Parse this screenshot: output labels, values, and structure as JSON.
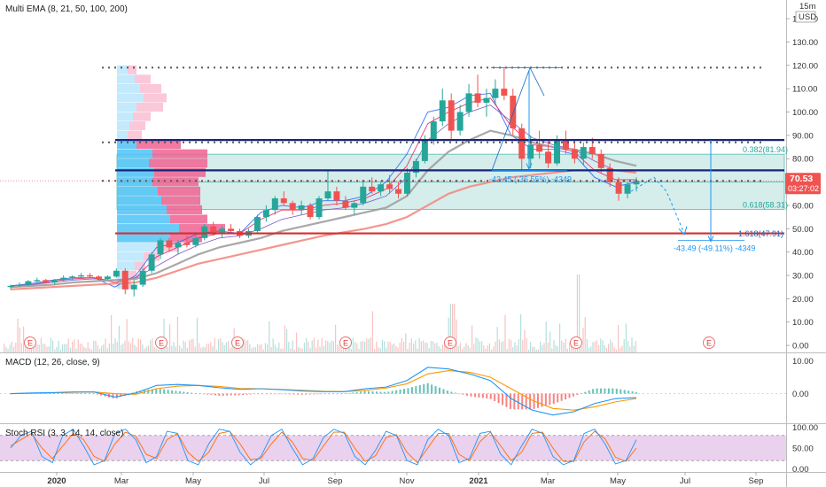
{
  "indicators": {
    "main": "Multi EMA (8, 21, 50, 100, 200)",
    "macd": "MACD (12, 26, close, 9)",
    "stoch": "Stoch RSI (3, 3, 14, 14, close)"
  },
  "header_right": {
    "interval": "15m",
    "currency": "USD"
  },
  "price_badge": {
    "price": "70.53",
    "countdown": "03:27:02"
  },
  "fib_levels": [
    {
      "label": "0.382(81.94)",
      "value": 81.94
    },
    {
      "label": "0.618(58.31)",
      "value": 58.31
    },
    {
      "label": "1.618(47.91)",
      "value": 47.91
    }
  ],
  "measure_labels": [
    {
      "text": "-43.45 (-36.55%) -4349",
      "x_date": "2021-03-25",
      "y_value": 70
    },
    {
      "text": "-43.49 (-49.11%) -4349",
      "x_date": "2021-08-01",
      "y_value": 40.5
    }
  ],
  "earnings_marker": "E",
  "colors": {
    "candle_up": "#26a69a",
    "candle_down": "#ef5350",
    "ema8": "#2962ff",
    "ema21": "#e91e63",
    "ema50": "#7e57c2",
    "ema100": "#9e9e9e",
    "ema200": "#f28b82",
    "macd_line": "#2196f3",
    "signal_line": "#ff9800",
    "stoch_k": "#2196f3",
    "stoch_d": "#ff6d00",
    "stoch_band": "#e1bee7",
    "fib_zone": "#b2dfdb",
    "support_red": "#d32f2f",
    "resistance_navy": "#1a237e"
  },
  "chart_data": [
    {
      "type": "candlestick",
      "x_axis": {
        "labels": [
          "2020",
          "Mar",
          "May",
          "Jul",
          "Sep",
          "Nov",
          "2021",
          "Mar",
          "May",
          "Jul",
          "Sep"
        ]
      },
      "y_axis": {
        "ticks": [
          0,
          10,
          20,
          30,
          40,
          50,
          60,
          70,
          80,
          90,
          100,
          110,
          120,
          130,
          140
        ],
        "format": "2dec",
        "range": [
          -3,
          148
        ]
      },
      "ohlc_weekly": [
        [
          25,
          26,
          24,
          25.5
        ],
        [
          25.5,
          27,
          25,
          26
        ],
        [
          26,
          28,
          25.5,
          27.5
        ],
        [
          27.5,
          29,
          27,
          28
        ],
        [
          28,
          28.5,
          26.5,
          27
        ],
        [
          27,
          28.5,
          26,
          28
        ],
        [
          28,
          30,
          27.5,
          29
        ],
        [
          29,
          30,
          28,
          29.5
        ],
        [
          29.5,
          31,
          29,
          30
        ],
        [
          30,
          31,
          29,
          29.5
        ],
        [
          29.5,
          30,
          28,
          28.5
        ],
        [
          28.5,
          30,
          28,
          29.5
        ],
        [
          29.5,
          33,
          29,
          32
        ],
        [
          32,
          33,
          22,
          24
        ],
        [
          24,
          28,
          21,
          26
        ],
        [
          26,
          33,
          25,
          32
        ],
        [
          32,
          40,
          31,
          39
        ],
        [
          39,
          46,
          37,
          45
        ],
        [
          45,
          46,
          40,
          42
        ],
        [
          42,
          45,
          39,
          44
        ],
        [
          44,
          47,
          42,
          43
        ],
        [
          43,
          47,
          42,
          46
        ],
        [
          46,
          52,
          45,
          51
        ],
        [
          51,
          53,
          47,
          48
        ],
        [
          48,
          51,
          46,
          50
        ],
        [
          50,
          52,
          48,
          49
        ],
        [
          49,
          50,
          46,
          47
        ],
        [
          47,
          50,
          46,
          49
        ],
        [
          49,
          56,
          48,
          55
        ],
        [
          55,
          60,
          53,
          58
        ],
        [
          58,
          64,
          56,
          63
        ],
        [
          63,
          66,
          60,
          61
        ],
        [
          61,
          62,
          56,
          58
        ],
        [
          58,
          62,
          56,
          60
        ],
        [
          60,
          61,
          54,
          55
        ],
        [
          55,
          64,
          54,
          63
        ],
        [
          63,
          75,
          62,
          66
        ],
        [
          66,
          68,
          60,
          62
        ],
        [
          62,
          64,
          58,
          59
        ],
        [
          59,
          62,
          56,
          61
        ],
        [
          61,
          70,
          60,
          68
        ],
        [
          68,
          72,
          65,
          66
        ],
        [
          66,
          70,
          64,
          69
        ],
        [
          69,
          73,
          65,
          67
        ],
        [
          67,
          70,
          63,
          65
        ],
        [
          65,
          76,
          64,
          74
        ],
        [
          74,
          80,
          72,
          79
        ],
        [
          79,
          90,
          78,
          88
        ],
        [
          88,
          98,
          86,
          96
        ],
        [
          96,
          110,
          94,
          105
        ],
        [
          105,
          108,
          88,
          92
        ],
        [
          92,
          103,
          90,
          100
        ],
        [
          100,
          112,
          98,
          108
        ],
        [
          108,
          116,
          102,
          104
        ],
        [
          104,
          110,
          98,
          106
        ],
        [
          106,
          114,
          103,
          110
        ],
        [
          110,
          119,
          105,
          107
        ],
        [
          107,
          110,
          90,
          93
        ],
        [
          93,
          95,
          75,
          80
        ],
        [
          80,
          90,
          76,
          86
        ],
        [
          86,
          92,
          80,
          83
        ],
        [
          83,
          88,
          76,
          78
        ],
        [
          78,
          90,
          77,
          88
        ],
        [
          88,
          92,
          82,
          84
        ],
        [
          84,
          88,
          78,
          80
        ],
        [
          80,
          87,
          77,
          85
        ],
        [
          85,
          89,
          80,
          82
        ],
        [
          82,
          84,
          74,
          76
        ],
        [
          76,
          78,
          68,
          70
        ],
        [
          70,
          72,
          62,
          65
        ],
        [
          65,
          70,
          63,
          69
        ],
        [
          69,
          72,
          66,
          70.53
        ]
      ],
      "ema_series": [
        {
          "name": "EMA 8",
          "values": [
            25.5,
            26.5,
            28,
            29,
            29,
            25,
            30,
            42,
            44,
            48,
            49,
            48,
            57,
            60,
            59,
            62,
            62,
            64,
            70,
            82,
            100,
            102,
            107,
            108,
            90,
            84,
            84,
            82,
            72,
            68,
            70
          ]
        },
        {
          "name": "EMA 21",
          "values": [
            25.5,
            26,
            27.5,
            28.5,
            29,
            27,
            29,
            38,
            42,
            46,
            48,
            48,
            54,
            58,
            58,
            60,
            61,
            63,
            67,
            77,
            95,
            100,
            104,
            106,
            94,
            86,
            85,
            83,
            75,
            71,
            71
          ]
        },
        {
          "name": "EMA 50",
          "values": [
            25.5,
            26,
            27,
            28,
            28.5,
            28,
            29,
            34,
            39,
            43,
            46,
            47,
            50,
            54,
            56,
            58,
            59,
            61,
            64,
            72,
            88,
            95,
            100,
            103,
            96,
            89,
            86,
            84,
            79,
            75,
            74
          ]
        },
        {
          "name": "EMA 100",
          "values": [
            25,
            25.5,
            26,
            27,
            27.5,
            28,
            28.5,
            31,
            35,
            39,
            42,
            44,
            46,
            49,
            51,
            53,
            55,
            57,
            59,
            64,
            75,
            83,
            88,
            92,
            90,
            87,
            85,
            84,
            82,
            79,
            77
          ]
        },
        {
          "name": "EMA 200",
          "values": [
            24,
            24.5,
            25,
            25.5,
            26,
            26.5,
            27,
            29,
            32,
            35,
            37,
            39,
            41,
            43,
            45,
            47,
            48.5,
            50,
            52,
            55,
            60,
            65,
            68,
            70,
            72,
            73,
            74,
            75,
            75,
            75,
            74
          ]
        }
      ],
      "horizontal_levels": [
        {
          "value": 119,
          "style": "dotted",
          "color": "#555555"
        },
        {
          "value": 87,
          "style": "dotted",
          "color": "#555555"
        },
        {
          "value": 70.5,
          "style": "dotted",
          "color": "#555555"
        },
        {
          "value": 88,
          "style": "solid",
          "color": "#1a237e"
        },
        {
          "value": 75,
          "style": "solid",
          "color": "#1a237e"
        },
        {
          "value": 48,
          "style": "solid",
          "color": "#d32f2f"
        }
      ],
      "fib_zone": {
        "top": 81.94,
        "bottom": 58.31
      }
    },
    {
      "type": "bar",
      "name": "MACD",
      "y_axis": {
        "ticks": [
          10,
          0
        ],
        "format": "2dec",
        "range": [
          -9,
          12
        ]
      },
      "macd_line": [
        0,
        0.2,
        0.3,
        0.5,
        0.5,
        -1,
        0.2,
        2.5,
        2.8,
        2.5,
        1.8,
        1.3,
        1.5,
        1.2,
        0.8,
        0.6,
        0.6,
        1.5,
        2,
        4,
        8,
        7.5,
        6,
        4,
        -1.5,
        -5,
        -6.5,
        -5.5,
        -3,
        -1.5,
        -1.2
      ],
      "signal_line": [
        0,
        0.1,
        0.2,
        0.4,
        0.5,
        0,
        -0.2,
        1.5,
        2.3,
        2.5,
        2.2,
        1.6,
        1.5,
        1.3,
        1,
        0.7,
        0.6,
        1,
        1.7,
        3,
        6,
        7,
        6.5,
        5,
        1.5,
        -2,
        -4.5,
        -5,
        -4,
        -2.5,
        -1.5
      ]
    },
    {
      "type": "line",
      "name": "Stoch RSI",
      "y_axis": {
        "ticks": [
          100,
          50,
          0
        ],
        "format": "2dec",
        "range": [
          -5,
          105
        ]
      },
      "bands": [
        80,
        20
      ],
      "k_line": [
        50,
        80,
        90,
        30,
        15,
        80,
        95,
        55,
        10,
        20,
        85,
        95,
        70,
        15,
        30,
        90,
        85,
        20,
        10,
        60,
        95,
        90,
        40,
        10,
        30,
        80,
        95,
        50,
        10,
        25,
        75,
        95,
        85,
        30,
        10,
        45,
        90,
        80,
        20,
        10,
        70,
        95,
        80,
        15,
        25,
        85,
        90,
        35,
        10,
        55,
        95,
        85,
        30,
        10,
        20,
        85,
        95,
        60,
        12,
        20,
        70
      ],
      "d_line": [
        55,
        70,
        85,
        50,
        25,
        55,
        85,
        70,
        30,
        18,
        60,
        88,
        78,
        35,
        25,
        70,
        85,
        40,
        18,
        40,
        85,
        90,
        60,
        22,
        25,
        60,
        88,
        65,
        25,
        20,
        55,
        88,
        88,
        50,
        18,
        32,
        75,
        82,
        40,
        15,
        50,
        85,
        85,
        35,
        20,
        65,
        88,
        55,
        20,
        40,
        85,
        88,
        50,
        18,
        18,
        65,
        90,
        72,
        28,
        18,
        50
      ]
    }
  ]
}
